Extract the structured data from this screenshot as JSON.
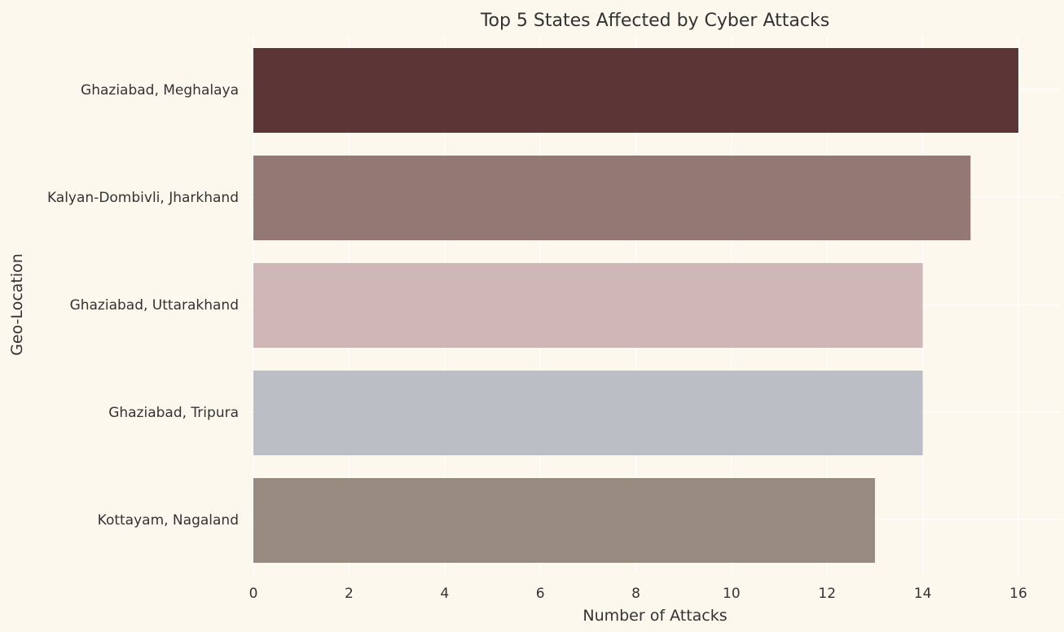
{
  "chart_data": {
    "type": "bar",
    "orientation": "horizontal",
    "title": "Top 5 States Affected by Cyber Attacks",
    "xlabel": "Number of Attacks",
    "ylabel": "Geo-Location",
    "categories": [
      "Ghaziabad, Meghalaya",
      "Kalyan-Dombivli, Jharkhand",
      "Ghaziabad, Uttarakhand",
      "Ghaziabad, Tripura",
      "Kottayam, Nagaland"
    ],
    "values": [
      16,
      15,
      14,
      14,
      13
    ],
    "colors": [
      "#5c3636",
      "#947874",
      "#cfb7b8",
      "#bbbec4",
      "#968b7e"
    ],
    "xlim": [
      0,
      16.8
    ],
    "xticks": [
      0,
      2,
      4,
      6,
      8,
      10,
      12,
      14,
      16
    ],
    "grid": true,
    "background": "#fdf8ee"
  }
}
